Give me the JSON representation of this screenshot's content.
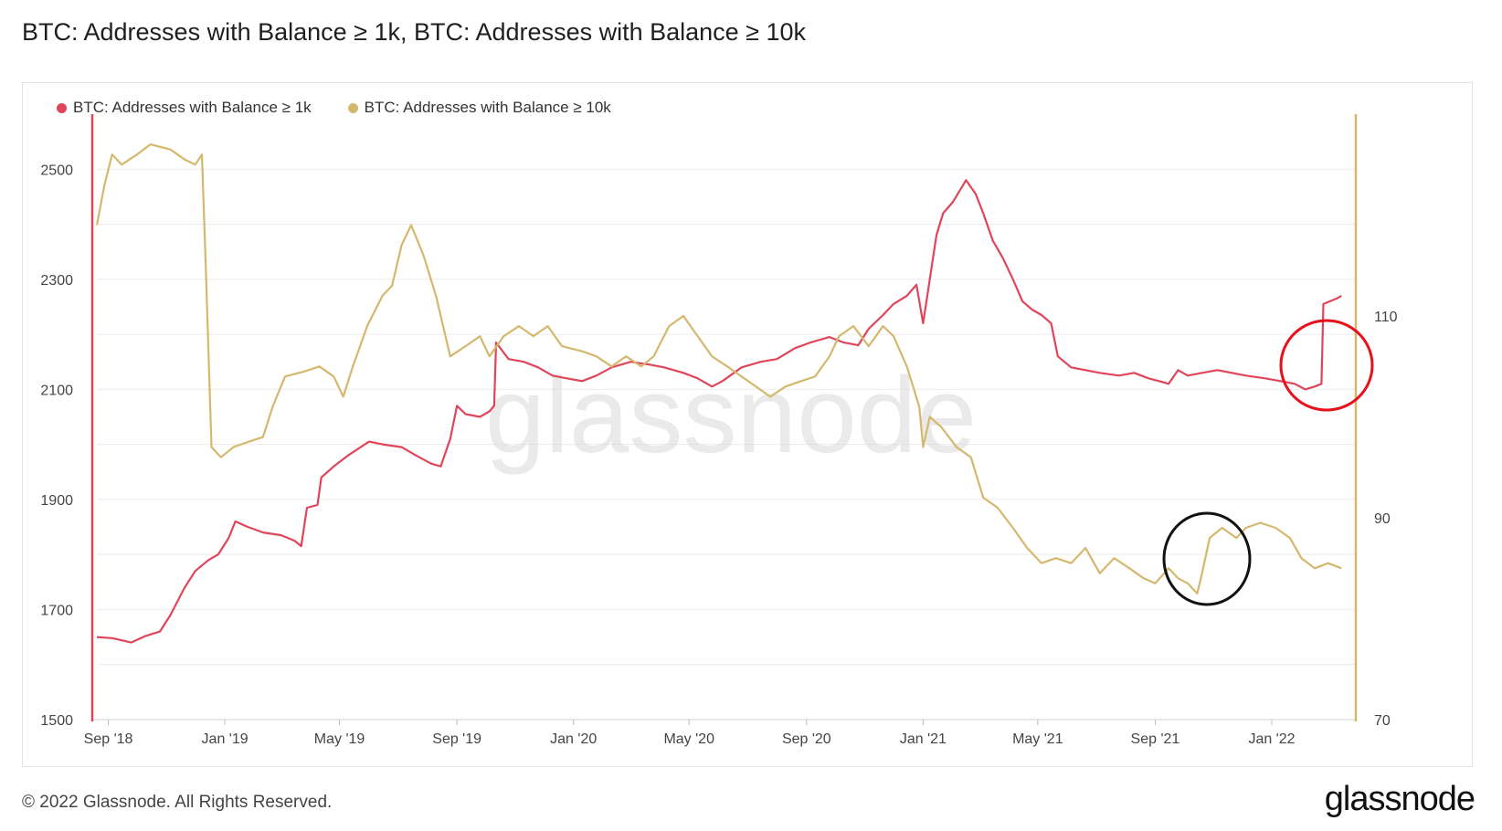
{
  "header": {
    "title": "BTC: Addresses with Balance ≥ 1k, BTC: Addresses with Balance ≥ 10k"
  },
  "footer": {
    "copyright": "© 2022 Glassnode. All Rights Reserved.",
    "brand": "glassnode"
  },
  "watermark": "glassnode",
  "colors": {
    "series_1k": "#e0455a",
    "series_10k": "#d4b86e",
    "grid": "#ececec",
    "annotation_red": "#e8101a",
    "annotation_black": "#111111"
  },
  "chart_data": {
    "type": "line",
    "title": "BTC: Addresses with Balance ≥ 1k, BTC: Addresses with Balance ≥ 10k",
    "legend_position": "top-left",
    "grid": true,
    "x_ticks": [
      "Sep '18",
      "Jan '19",
      "May '19",
      "Sep '19",
      "Jan '20",
      "May '20",
      "Sep '20",
      "Jan '21",
      "May '21",
      "Sep '21",
      "Jan '22"
    ],
    "x_tick_dates": [
      "2018-09-01",
      "2019-01-01",
      "2019-05-01",
      "2019-09-01",
      "2020-01-01",
      "2020-05-01",
      "2020-09-01",
      "2021-01-01",
      "2021-05-01",
      "2021-09-01",
      "2022-01-01"
    ],
    "x_range": [
      "2018-08-20",
      "2022-03-30"
    ],
    "y_left": {
      "range": [
        1500,
        2600
      ],
      "ticks": [
        1500,
        1700,
        1900,
        2100,
        2300,
        2500
      ]
    },
    "y_right": {
      "range": [
        70,
        130
      ],
      "ticks": [
        70,
        90,
        110
      ]
    },
    "series": [
      {
        "name": "BTC: Addresses with Balance ≥ 1k",
        "axis": "left",
        "color": "#e0455a",
        "points": [
          [
            "2018-08-20",
            1650
          ],
          [
            "2018-09-05",
            1648
          ],
          [
            "2018-09-25",
            1640
          ],
          [
            "2018-10-10",
            1652
          ],
          [
            "2018-10-25",
            1660
          ],
          [
            "2018-11-05",
            1690
          ],
          [
            "2018-11-20",
            1740
          ],
          [
            "2018-12-01",
            1770
          ],
          [
            "2018-12-15",
            1790
          ],
          [
            "2018-12-25",
            1800
          ],
          [
            "2019-01-05",
            1830
          ],
          [
            "2019-01-12",
            1860
          ],
          [
            "2019-01-25",
            1850
          ],
          [
            "2019-02-10",
            1840
          ],
          [
            "2019-03-01",
            1835
          ],
          [
            "2019-03-15",
            1825
          ],
          [
            "2019-03-22",
            1815
          ],
          [
            "2019-03-28",
            1885
          ],
          [
            "2019-04-08",
            1890
          ],
          [
            "2019-04-12",
            1940
          ],
          [
            "2019-04-25",
            1960
          ],
          [
            "2019-05-10",
            1980
          ],
          [
            "2019-06-01",
            2005
          ],
          [
            "2019-06-15",
            2000
          ],
          [
            "2019-07-05",
            1995
          ],
          [
            "2019-07-20",
            1980
          ],
          [
            "2019-08-05",
            1965
          ],
          [
            "2019-08-15",
            1960
          ],
          [
            "2019-08-25",
            2010
          ],
          [
            "2019-09-01",
            2070
          ],
          [
            "2019-09-10",
            2055
          ],
          [
            "2019-09-25",
            2050
          ],
          [
            "2019-10-05",
            2060
          ],
          [
            "2019-10-10",
            2070
          ],
          [
            "2019-10-12",
            2185
          ],
          [
            "2019-10-25",
            2155
          ],
          [
            "2019-11-10",
            2150
          ],
          [
            "2019-11-25",
            2140
          ],
          [
            "2019-12-10",
            2125
          ],
          [
            "2019-12-25",
            2120
          ],
          [
            "2020-01-10",
            2115
          ],
          [
            "2020-01-25",
            2125
          ],
          [
            "2020-02-10",
            2140
          ],
          [
            "2020-03-01",
            2150
          ],
          [
            "2020-03-20",
            2145
          ],
          [
            "2020-04-05",
            2140
          ],
          [
            "2020-04-25",
            2130
          ],
          [
            "2020-05-10",
            2120
          ],
          [
            "2020-05-25",
            2105
          ],
          [
            "2020-06-05",
            2115
          ],
          [
            "2020-06-25",
            2140
          ],
          [
            "2020-07-15",
            2150
          ],
          [
            "2020-08-01",
            2155
          ],
          [
            "2020-08-20",
            2175
          ],
          [
            "2020-09-05",
            2185
          ],
          [
            "2020-09-25",
            2195
          ],
          [
            "2020-10-10",
            2185
          ],
          [
            "2020-10-25",
            2180
          ],
          [
            "2020-11-05",
            2210
          ],
          [
            "2020-11-20",
            2235
          ],
          [
            "2020-12-01",
            2255
          ],
          [
            "2020-12-15",
            2270
          ],
          [
            "2020-12-25",
            2290
          ],
          [
            "2021-01-01",
            2220
          ],
          [
            "2021-01-08",
            2300
          ],
          [
            "2021-01-15",
            2380
          ],
          [
            "2021-01-22",
            2420
          ],
          [
            "2021-02-01",
            2440
          ],
          [
            "2021-02-15",
            2480
          ],
          [
            "2021-02-25",
            2455
          ],
          [
            "2021-03-05",
            2420
          ],
          [
            "2021-03-15",
            2370
          ],
          [
            "2021-03-25",
            2340
          ],
          [
            "2021-04-05",
            2300
          ],
          [
            "2021-04-15",
            2260
          ],
          [
            "2021-04-25",
            2245
          ],
          [
            "2021-05-05",
            2235
          ],
          [
            "2021-05-15",
            2220
          ],
          [
            "2021-05-22",
            2160
          ],
          [
            "2021-06-05",
            2140
          ],
          [
            "2021-06-20",
            2135
          ],
          [
            "2021-07-05",
            2130
          ],
          [
            "2021-07-25",
            2125
          ],
          [
            "2021-08-10",
            2130
          ],
          [
            "2021-08-25",
            2120
          ],
          [
            "2021-09-05",
            2115
          ],
          [
            "2021-09-15",
            2110
          ],
          [
            "2021-09-25",
            2135
          ],
          [
            "2021-10-05",
            2125
          ],
          [
            "2021-10-20",
            2130
          ],
          [
            "2021-11-05",
            2135
          ],
          [
            "2021-11-20",
            2130
          ],
          [
            "2021-12-05",
            2125
          ],
          [
            "2021-12-25",
            2120
          ],
          [
            "2022-01-10",
            2115
          ],
          [
            "2022-01-25",
            2110
          ],
          [
            "2022-02-05",
            2100
          ],
          [
            "2022-02-15",
            2105
          ],
          [
            "2022-02-22",
            2110
          ],
          [
            "2022-02-24",
            2255
          ],
          [
            "2022-03-10",
            2265
          ],
          [
            "2022-03-15",
            2270
          ]
        ]
      },
      {
        "name": "BTC: Addresses with Balance ≥ 10k",
        "axis": "right",
        "color": "#d4b86e",
        "points": [
          [
            "2018-08-20",
            119
          ],
          [
            "2018-08-28",
            123
          ],
          [
            "2018-09-05",
            126
          ],
          [
            "2018-09-15",
            125
          ],
          [
            "2018-10-01",
            126
          ],
          [
            "2018-10-15",
            127
          ],
          [
            "2018-11-05",
            126.5
          ],
          [
            "2018-11-20",
            125.5
          ],
          [
            "2018-12-01",
            125
          ],
          [
            "2018-12-08",
            126
          ],
          [
            "2018-12-12",
            115
          ],
          [
            "2018-12-18",
            97
          ],
          [
            "2018-12-28",
            96
          ],
          [
            "2019-01-10",
            97
          ],
          [
            "2019-01-25",
            97.5
          ],
          [
            "2019-02-10",
            98
          ],
          [
            "2019-02-20",
            101
          ],
          [
            "2019-03-05",
            104
          ],
          [
            "2019-03-25",
            104.5
          ],
          [
            "2019-04-10",
            105
          ],
          [
            "2019-04-25",
            104
          ],
          [
            "2019-05-05",
            102
          ],
          [
            "2019-05-15",
            105
          ],
          [
            "2019-05-30",
            109
          ],
          [
            "2019-06-15",
            112
          ],
          [
            "2019-06-25",
            113
          ],
          [
            "2019-07-05",
            117
          ],
          [
            "2019-07-15",
            119
          ],
          [
            "2019-07-28",
            116
          ],
          [
            "2019-08-10",
            112
          ],
          [
            "2019-08-25",
            106
          ],
          [
            "2019-09-10",
            107
          ],
          [
            "2019-09-25",
            108
          ],
          [
            "2019-10-05",
            106
          ],
          [
            "2019-10-20",
            108
          ],
          [
            "2019-11-05",
            109
          ],
          [
            "2019-11-20",
            108
          ],
          [
            "2019-12-05",
            109
          ],
          [
            "2019-12-20",
            107
          ],
          [
            "2020-01-10",
            106.5
          ],
          [
            "2020-01-25",
            106
          ],
          [
            "2020-02-10",
            105
          ],
          [
            "2020-02-25",
            106
          ],
          [
            "2020-03-12",
            105
          ],
          [
            "2020-03-25",
            106
          ],
          [
            "2020-04-10",
            109
          ],
          [
            "2020-04-25",
            110
          ],
          [
            "2020-05-10",
            108
          ],
          [
            "2020-05-25",
            106
          ],
          [
            "2020-06-10",
            105
          ],
          [
            "2020-06-25",
            104
          ],
          [
            "2020-07-10",
            103
          ],
          [
            "2020-07-25",
            102
          ],
          [
            "2020-08-10",
            103
          ],
          [
            "2020-08-25",
            103.5
          ],
          [
            "2020-09-10",
            104
          ],
          [
            "2020-09-25",
            106
          ],
          [
            "2020-10-05",
            108
          ],
          [
            "2020-10-20",
            109
          ],
          [
            "2020-11-05",
            107
          ],
          [
            "2020-11-20",
            109
          ],
          [
            "2020-12-01",
            108
          ],
          [
            "2020-12-15",
            105
          ],
          [
            "2020-12-28",
            101
          ],
          [
            "2021-01-01",
            97
          ],
          [
            "2021-01-08",
            100
          ],
          [
            "2021-01-20",
            99
          ],
          [
            "2021-02-05",
            97
          ],
          [
            "2021-02-20",
            96
          ],
          [
            "2021-03-05",
            92
          ],
          [
            "2021-03-20",
            91
          ],
          [
            "2021-04-05",
            89
          ],
          [
            "2021-04-20",
            87
          ],
          [
            "2021-05-05",
            85.5
          ],
          [
            "2021-05-20",
            86
          ],
          [
            "2021-06-05",
            85.5
          ],
          [
            "2021-06-20",
            87
          ],
          [
            "2021-07-05",
            84.5
          ],
          [
            "2021-07-20",
            86
          ],
          [
            "2021-08-05",
            85
          ],
          [
            "2021-08-20",
            84
          ],
          [
            "2021-09-01",
            83.5
          ],
          [
            "2021-09-15",
            85
          ],
          [
            "2021-09-25",
            84
          ],
          [
            "2021-10-05",
            83.5
          ],
          [
            "2021-10-15",
            82.5
          ],
          [
            "2021-10-20",
            84.5
          ],
          [
            "2021-10-28",
            88
          ],
          [
            "2021-11-10",
            89
          ],
          [
            "2021-11-25",
            88
          ],
          [
            "2021-12-05",
            89
          ],
          [
            "2021-12-20",
            89.5
          ],
          [
            "2022-01-05",
            89
          ],
          [
            "2022-01-20",
            88
          ],
          [
            "2022-02-01",
            86
          ],
          [
            "2022-02-15",
            85
          ],
          [
            "2022-03-01",
            85.5
          ],
          [
            "2022-03-15",
            85
          ]
        ]
      }
    ]
  }
}
